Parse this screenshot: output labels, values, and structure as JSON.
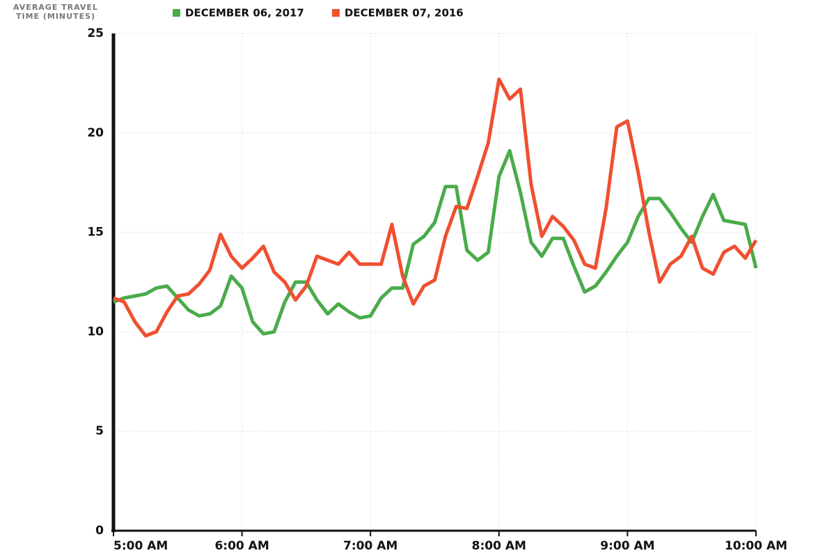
{
  "chart_data": {
    "type": "line",
    "y_label_lines": [
      "AVERAGE TRAVEL",
      "TIME (MINUTES)"
    ],
    "x": [
      300,
      305,
      310,
      315,
      320,
      325,
      330,
      335,
      340,
      345,
      350,
      355,
      360,
      365,
      370,
      375,
      380,
      385,
      390,
      395,
      400,
      405,
      410,
      415,
      420,
      425,
      430,
      435,
      440,
      445,
      450,
      455,
      460,
      465,
      470,
      475,
      480,
      485,
      490,
      495,
      500,
      505,
      510,
      515,
      520,
      525,
      530,
      535,
      540,
      545,
      550,
      555,
      560,
      565,
      570,
      575,
      580,
      585,
      590,
      595,
      600
    ],
    "series": [
      {
        "name": "DECEMBER 06, 2017",
        "color": "#4aab4a",
        "values": [
          11.5,
          11.7,
          11.8,
          11.9,
          12.2,
          12.3,
          11.7,
          11.1,
          10.8,
          10.9,
          11.3,
          12.8,
          12.2,
          10.5,
          9.9,
          10.0,
          11.5,
          12.5,
          12.5,
          11.6,
          10.9,
          11.4,
          11.0,
          10.7,
          10.8,
          11.7,
          12.2,
          12.2,
          14.4,
          14.8,
          15.5,
          17.3,
          17.3,
          14.1,
          13.6,
          14.0,
          17.8,
          19.1,
          17.0,
          14.5,
          13.8,
          14.7,
          14.7,
          13.3,
          12.0,
          12.3,
          13.0,
          13.8,
          14.5,
          15.8,
          16.7,
          16.7,
          16.0,
          15.2,
          14.5,
          15.8,
          16.9,
          15.6,
          15.5,
          15.4,
          13.2
        ]
      },
      {
        "name": "DECEMBER 07, 2016",
        "color": "#ef5030",
        "values": [
          11.7,
          11.5,
          10.5,
          9.8,
          10.0,
          11.0,
          11.8,
          11.9,
          12.4,
          13.1,
          14.9,
          13.8,
          13.2,
          13.7,
          14.3,
          13.0,
          12.5,
          11.6,
          12.3,
          13.8,
          13.6,
          13.4,
          14.0,
          13.4,
          13.4,
          13.4,
          15.4,
          12.8,
          11.4,
          12.3,
          12.6,
          14.8,
          16.3,
          16.2,
          17.8,
          19.5,
          22.7,
          21.7,
          22.2,
          17.4,
          14.8,
          15.8,
          15.3,
          14.6,
          13.4,
          13.2,
          16.2,
          20.3,
          20.6,
          18.0,
          15.0,
          12.5,
          13.4,
          13.8,
          14.8,
          13.2,
          12.9,
          14.0,
          14.3,
          13.7,
          14.6
        ]
      }
    ],
    "xlim": [
      300,
      600
    ],
    "xticks": [
      {
        "value": 300,
        "label": "5:00 AM"
      },
      {
        "value": 360,
        "label": "6:00 AM"
      },
      {
        "value": 420,
        "label": "7:00 AM"
      },
      {
        "value": 480,
        "label": "8:00 AM"
      },
      {
        "value": 540,
        "label": "9:00 AM"
      },
      {
        "value": 600,
        "label": "10:00 AM"
      }
    ],
    "ylim": [
      0,
      25
    ],
    "yticks": [
      0,
      5,
      10,
      15,
      20,
      25
    ],
    "grid": true
  }
}
